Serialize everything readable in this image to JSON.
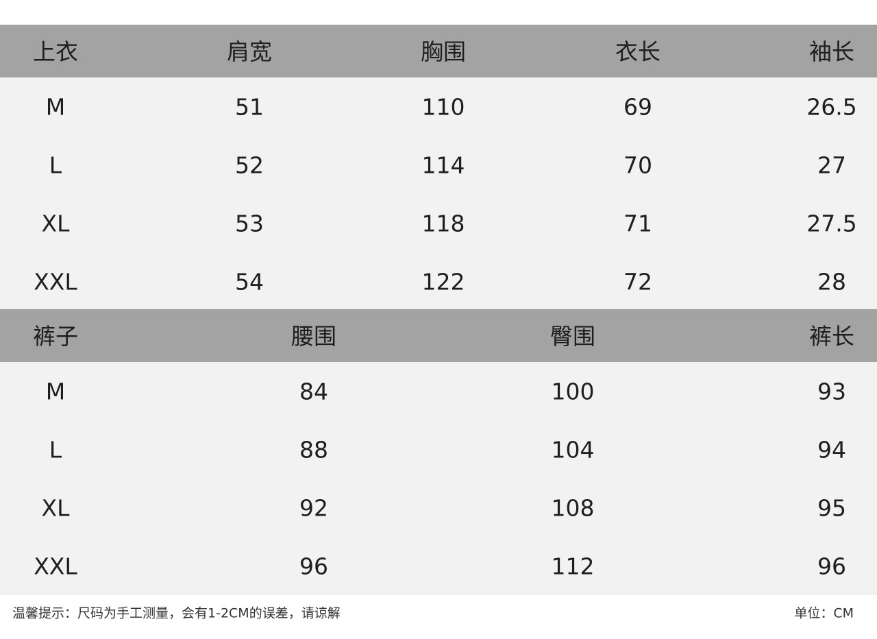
{
  "tops": {
    "headers": [
      "上衣",
      "肩宽",
      "胸围",
      "衣长",
      "袖长"
    ],
    "rows": [
      [
        "M",
        "51",
        "110",
        "69",
        "26.5"
      ],
      [
        "L",
        "52",
        "114",
        "70",
        "27"
      ],
      [
        "XL",
        "53",
        "118",
        "71",
        "27.5"
      ],
      [
        "XXL",
        "54",
        "122",
        "72",
        "28"
      ]
    ]
  },
  "pants": {
    "headers": [
      "裤子",
      "腰围",
      "臀围",
      "裤长"
    ],
    "rows": [
      [
        "M",
        "84",
        "100",
        "93"
      ],
      [
        "L",
        "88",
        "104",
        "94"
      ],
      [
        "XL",
        "92",
        "108",
        "95"
      ],
      [
        "XXL",
        "96",
        "112",
        "96"
      ]
    ]
  },
  "footer": {
    "note": "温馨提示：尺码为手工测量，会有1-2CM的误差，请谅解",
    "unit": "单位：CM"
  },
  "colors": {
    "header_bg": "#a3a3a3",
    "body_bg": "#f2f2f2"
  }
}
